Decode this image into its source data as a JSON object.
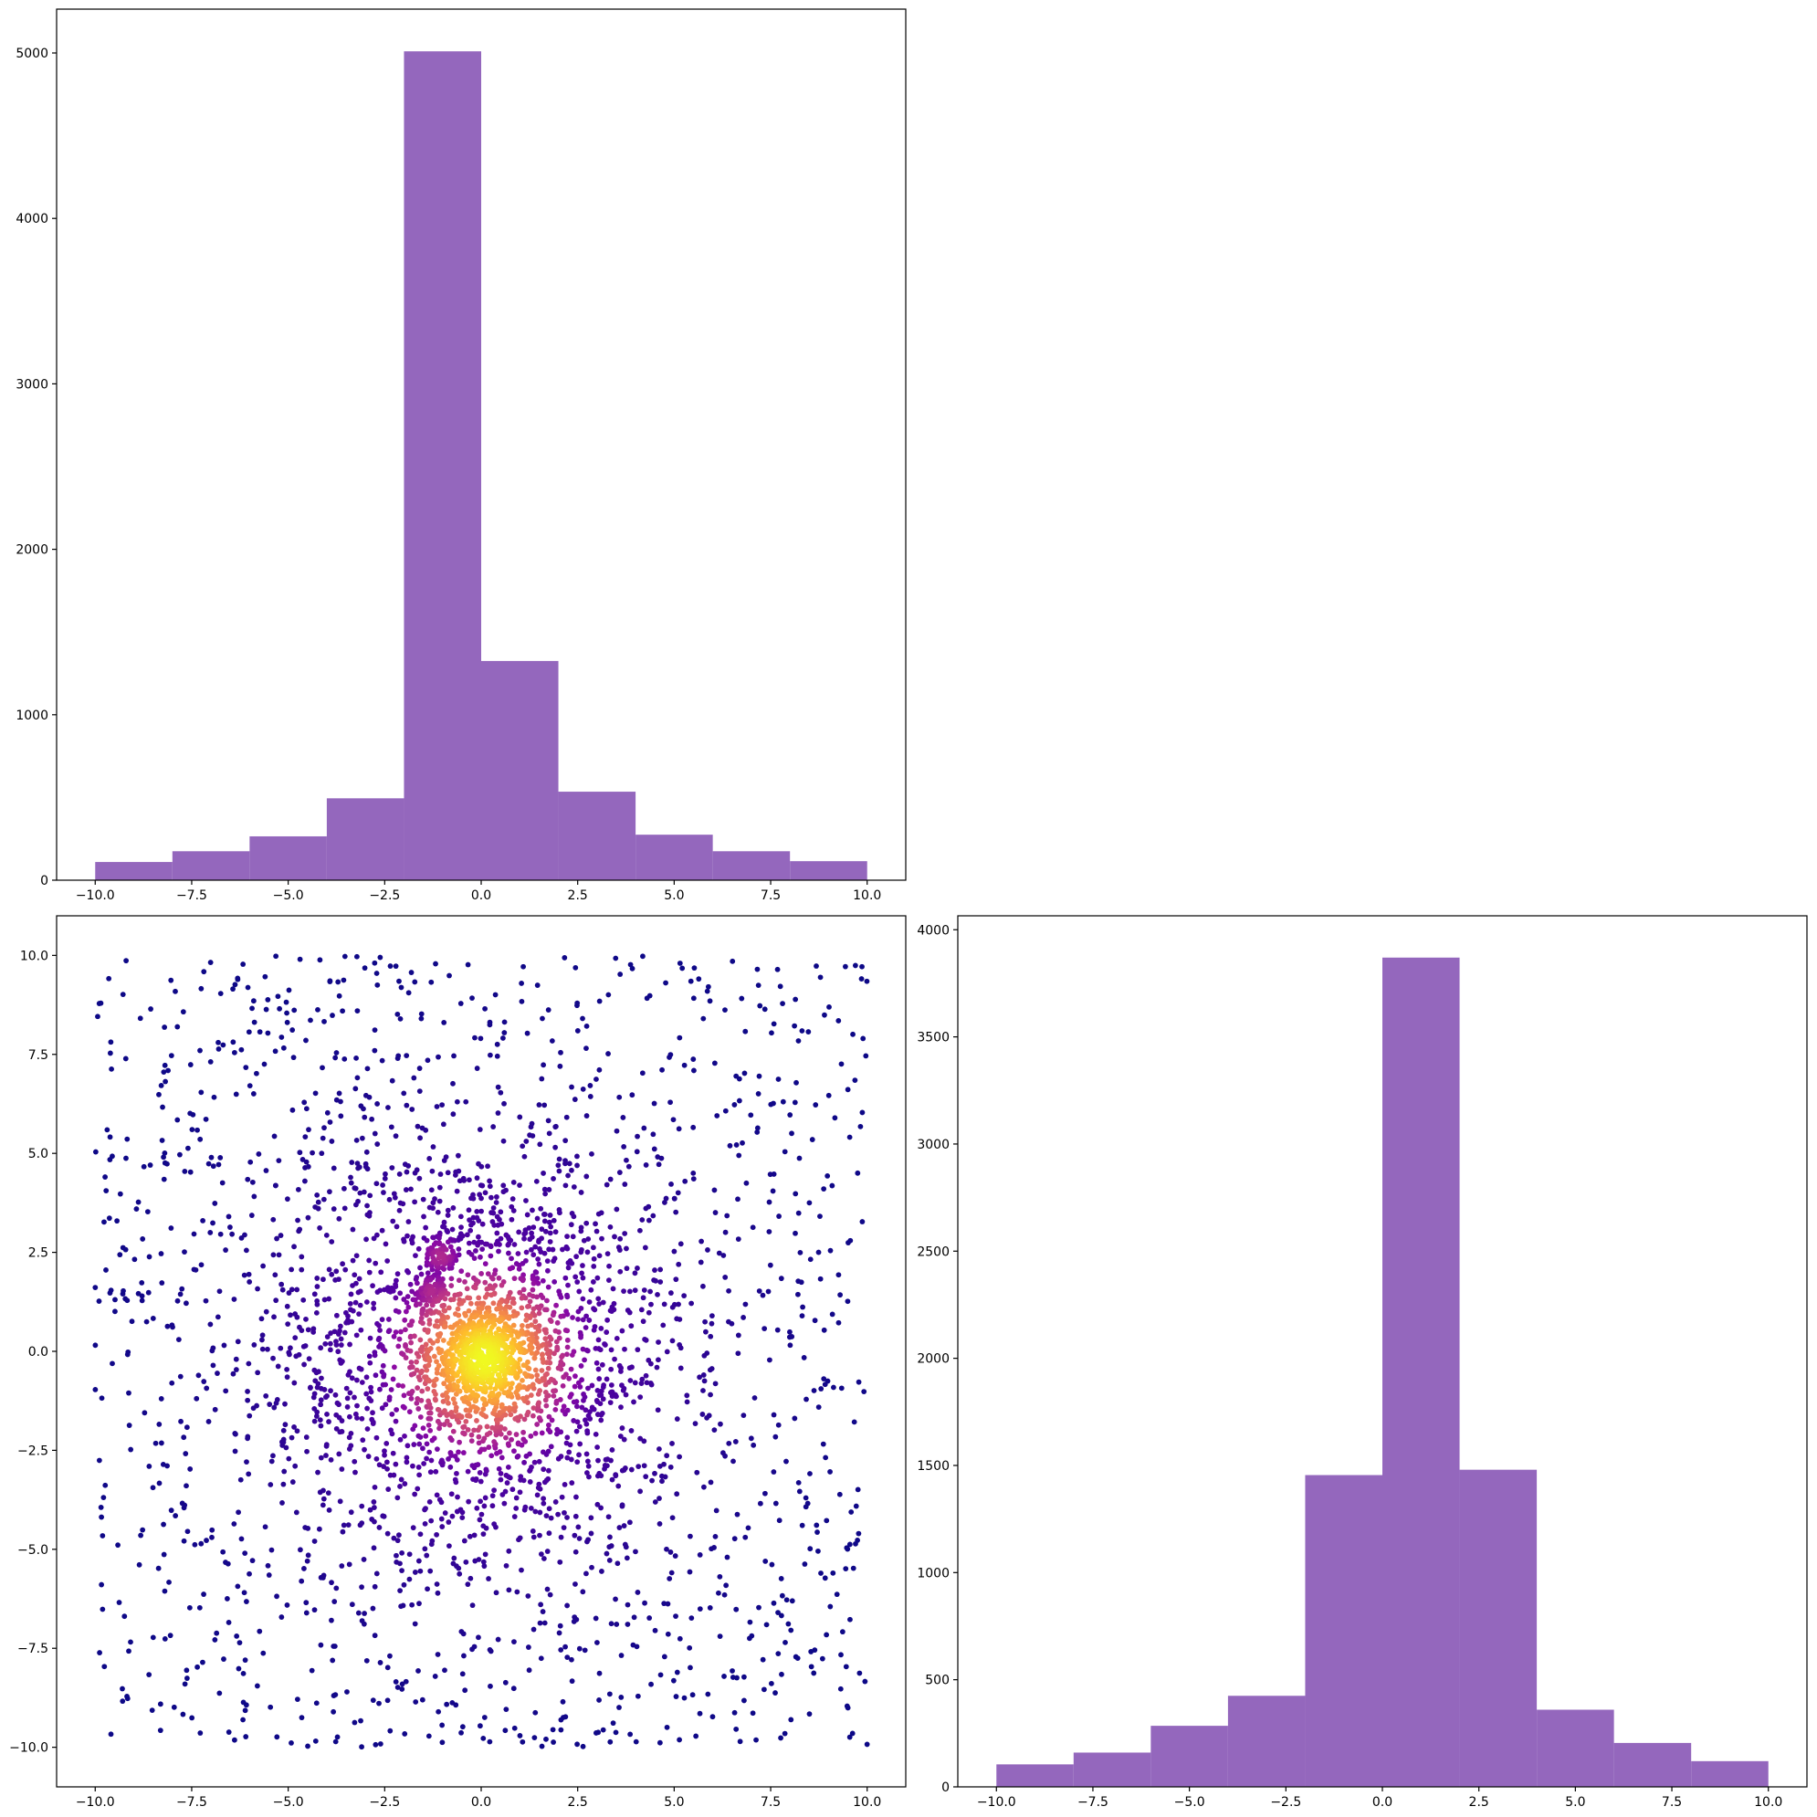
{
  "colors": {
    "bar_fill": "#9467bd",
    "scatter_colormap": "plasma",
    "axes_edge": "#000000",
    "background": "#ffffff"
  },
  "chart_data": [
    {
      "id": "top-left",
      "type": "bar",
      "title": "",
      "xlabel": "",
      "ylabel": "",
      "xlim": [
        -11,
        11
      ],
      "ylim": [
        0,
        5265
      ],
      "bin_edges": [
        -10,
        -8,
        -6,
        -4,
        -2,
        0,
        2,
        4,
        6,
        8,
        10
      ],
      "values": [
        110,
        175,
        265,
        495,
        5010,
        1325,
        535,
        275,
        175,
        115
      ],
      "x_ticks": [
        -10,
        -7.5,
        -5,
        -2.5,
        0,
        2.5,
        5,
        7.5,
        10
      ],
      "x_tick_labels": [
        "−10.0",
        "−7.5",
        "−5.0",
        "−2.5",
        "0.0",
        "2.5",
        "5.0",
        "7.5",
        "10.0"
      ],
      "y_ticks": [
        0,
        1000,
        2000,
        3000,
        4000,
        5000
      ],
      "y_tick_labels": [
        "0",
        "1000",
        "2000",
        "3000",
        "4000",
        "5000"
      ],
      "grid": false,
      "legend": "none"
    },
    {
      "id": "bottom-left",
      "type": "scatter",
      "title": "",
      "xlabel": "",
      "ylabel": "",
      "xlim": [
        -11,
        11
      ],
      "ylim": [
        -11,
        11
      ],
      "points": {
        "count_total": 10000,
        "uniform_background": {
          "x_range": [
            -10,
            10
          ],
          "y_range": [
            -10,
            10
          ],
          "approx_count": 1400
        },
        "central_gaussian_cluster": {
          "center": [
            0.1,
            -0.2
          ],
          "sd": 0.7,
          "approx_count": 700
        },
        "mid_ring": {
          "center": [
            0,
            0
          ],
          "sd": 2.6,
          "approx_count": 1500
        },
        "small_clusters": [
          {
            "center": [
              -1.05,
              2.4
            ],
            "sd": 0.25
          },
          {
            "center": [
              -1.3,
              1.5
            ],
            "sd": 0.2
          }
        ],
        "color_encoding": "point density (plasma colormap: low = dark purple, high = yellow)"
      },
      "x_ticks": [
        -10,
        -7.5,
        -5,
        -2.5,
        0,
        2.5,
        5,
        7.5,
        10
      ],
      "x_tick_labels": [
        "−10.0",
        "−7.5",
        "−5.0",
        "−2.5",
        "0.0",
        "2.5",
        "5.0",
        "7.5",
        "10.0"
      ],
      "y_ticks": [
        -10,
        -7.5,
        -5,
        -2.5,
        0,
        2.5,
        5,
        7.5,
        10
      ],
      "y_tick_labels": [
        "−10.0",
        "−7.5",
        "−5.0",
        "−2.5",
        "0.0",
        "2.5",
        "5.0",
        "7.5",
        "10.0"
      ],
      "grid": false,
      "legend": "none"
    },
    {
      "id": "bottom-right",
      "type": "bar",
      "title": "",
      "xlabel": "",
      "ylabel": "",
      "xlim": [
        -11,
        11
      ],
      "ylim": [
        0,
        4065
      ],
      "bin_edges": [
        -10,
        -8,
        -6,
        -4,
        -2,
        0,
        2,
        4,
        6,
        8,
        10
      ],
      "values": [
        105,
        160,
        285,
        425,
        1455,
        3870,
        1480,
        360,
        205,
        120
      ],
      "x_ticks": [
        -10,
        -7.5,
        -5,
        -2.5,
        0,
        2.5,
        5,
        7.5,
        10
      ],
      "x_tick_labels": [
        "−10.0",
        "−7.5",
        "−5.0",
        "−2.5",
        "0.0",
        "2.5",
        "5.0",
        "7.5",
        "10.0"
      ],
      "y_ticks": [
        0,
        500,
        1000,
        1500,
        2000,
        2500,
        3000,
        3500,
        4000
      ],
      "y_tick_labels": [
        "0",
        "500",
        "1000",
        "1500",
        "2000",
        "2500",
        "3000",
        "3500",
        "4000"
      ],
      "grid": false,
      "legend": "none"
    }
  ]
}
